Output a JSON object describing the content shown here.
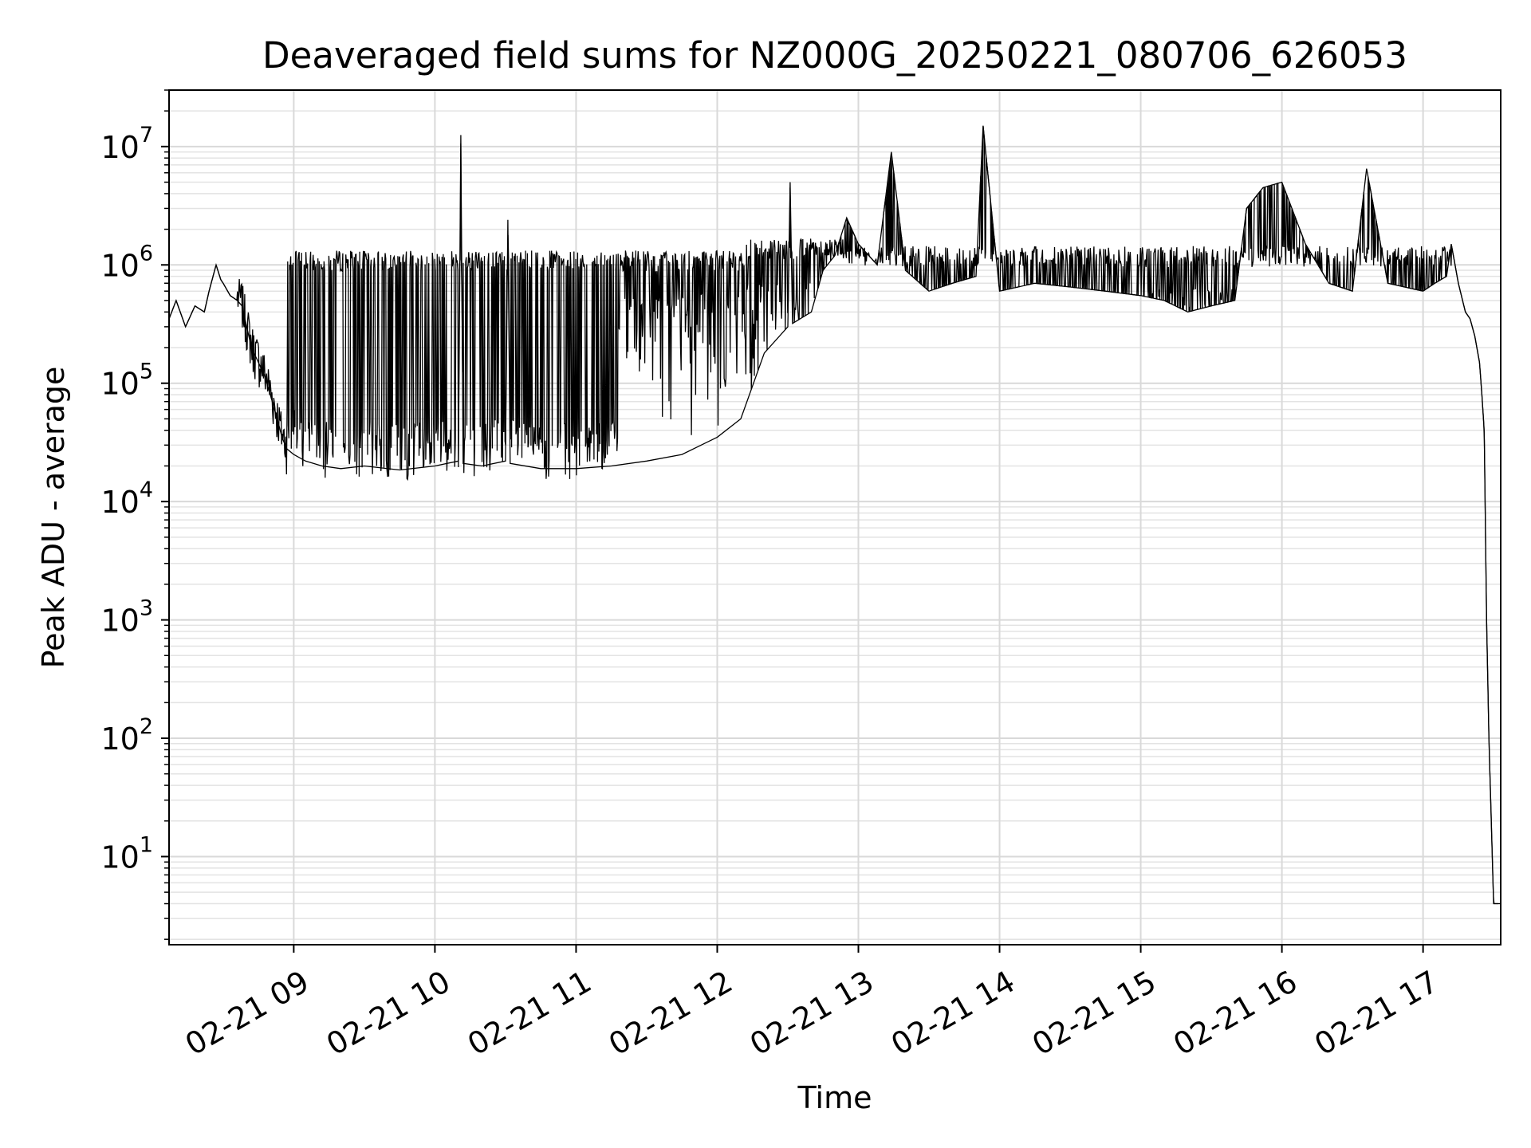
{
  "chart_data": {
    "type": "line",
    "title": "Deaveraged field sums for NZ000G_20250221_080706_626053",
    "xlabel": "Time",
    "ylabel": "Peak ADU - average",
    "yscale": "log",
    "grid": true,
    "xlim": [
      "2025-02-21 08:07",
      "2025-02-21 17:33"
    ],
    "ylim": [
      1.8,
      30000000
    ],
    "x_ticks": [
      {
        "value": "2025-02-21 09:00",
        "label": "02-21 09"
      },
      {
        "value": "2025-02-21 10:00",
        "label": "02-21 10"
      },
      {
        "value": "2025-02-21 11:00",
        "label": "02-21 11"
      },
      {
        "value": "2025-02-21 12:00",
        "label": "02-21 12"
      },
      {
        "value": "2025-02-21 13:00",
        "label": "02-21 13"
      },
      {
        "value": "2025-02-21 14:00",
        "label": "02-21 14"
      },
      {
        "value": "2025-02-21 15:00",
        "label": "02-21 15"
      },
      {
        "value": "2025-02-21 16:00",
        "label": "02-21 16"
      },
      {
        "value": "2025-02-21 17:00",
        "label": "02-21 17"
      }
    ],
    "y_ticks": [
      {
        "value": 10,
        "base": "10",
        "exp": "1"
      },
      {
        "value": 100,
        "base": "10",
        "exp": "2"
      },
      {
        "value": 1000,
        "base": "10",
        "exp": "3"
      },
      {
        "value": 10000,
        "base": "10",
        "exp": "4"
      },
      {
        "value": 100000,
        "base": "10",
        "exp": "5"
      },
      {
        "value": 1000000,
        "base": "10",
        "exp": "6"
      },
      {
        "value": 10000000,
        "base": "10",
        "exp": "7"
      }
    ],
    "series": [
      {
        "color": "#000000",
        "x": [
          "2025-02-21 08:07",
          "2025-02-21 08:10",
          "2025-02-21 08:14",
          "2025-02-21 08:18",
          "2025-02-21 08:22",
          "2025-02-21 08:24",
          "2025-02-21 08:27",
          "2025-02-21 08:29",
          "2025-02-21 08:30",
          "2025-02-21 08:33",
          "2025-02-21 08:36",
          "2025-02-21 08:38",
          "2025-02-21 08:40",
          "2025-02-21 08:42",
          "2025-02-21 08:45",
          "2025-02-21 08:48",
          "2025-02-21 08:50",
          "2025-02-21 08:53",
          "2025-02-21 08:55",
          "2025-02-21 08:57",
          "2025-02-21 09:00",
          "2025-02-21 09:05",
          "2025-02-21 09:12",
          "2025-02-21 09:20",
          "2025-02-21 09:30",
          "2025-02-21 09:45",
          "2025-02-21 10:00",
          "2025-02-21 10:10",
          "2025-02-21 10:11",
          "2025-02-21 10:12",
          "2025-02-21 10:20",
          "2025-02-21 10:30",
          "2025-02-21 10:31",
          "2025-02-21 10:32",
          "2025-02-21 10:45",
          "2025-02-21 11:00",
          "2025-02-21 11:15",
          "2025-02-21 11:30",
          "2025-02-21 11:45",
          "2025-02-21 12:00",
          "2025-02-21 12:10",
          "2025-02-21 12:20",
          "2025-02-21 12:30",
          "2025-02-21 12:31",
          "2025-02-21 12:32",
          "2025-02-21 12:40",
          "2025-02-21 12:45",
          "2025-02-21 12:50",
          "2025-02-21 12:55",
          "2025-02-21 13:00",
          "2025-02-21 13:08",
          "2025-02-21 13:14",
          "2025-02-21 13:20",
          "2025-02-21 13:30",
          "2025-02-21 13:40",
          "2025-02-21 13:50",
          "2025-02-21 13:53",
          "2025-02-21 14:00",
          "2025-02-21 14:15",
          "2025-02-21 14:30",
          "2025-02-21 14:45",
          "2025-02-21 15:00",
          "2025-02-21 15:10",
          "2025-02-21 15:20",
          "2025-02-21 15:30",
          "2025-02-21 15:40",
          "2025-02-21 15:45",
          "2025-02-21 15:52",
          "2025-02-21 16:00",
          "2025-02-21 16:10",
          "2025-02-21 16:20",
          "2025-02-21 16:30",
          "2025-02-21 16:36",
          "2025-02-21 16:45",
          "2025-02-21 17:00",
          "2025-02-21 17:05",
          "2025-02-21 17:10",
          "2025-02-21 17:12",
          "2025-02-21 17:15",
          "2025-02-21 17:18",
          "2025-02-21 17:20",
          "2025-02-21 17:22",
          "2025-02-21 17:24",
          "2025-02-21 17:25",
          "2025-02-21 17:26",
          "2025-02-21 17:27",
          "2025-02-21 17:28",
          "2025-02-21 17:30",
          "2025-02-21 17:32"
        ],
        "y": [
          350000,
          500000,
          300000,
          450000,
          400000,
          600000,
          1000000,
          750000,
          700000,
          550000,
          500000,
          450000,
          300000,
          200000,
          150000,
          110000,
          80000,
          50000,
          35000,
          28000,
          25000,
          22000,
          20000,
          19000,
          20000,
          18500,
          20000,
          22000,
          12500000,
          21000,
          20000,
          22000,
          2400000,
          21000,
          19000,
          19000,
          20000,
          22000,
          25000,
          35000,
          50000,
          180000,
          300000,
          5000000,
          320000,
          400000,
          900000,
          1200000,
          2500000,
          1500000,
          1000000,
          9000000,
          900000,
          600000,
          700000,
          800000,
          15000000,
          600000,
          700000,
          650000,
          600000,
          550000,
          500000,
          400000,
          450000,
          500000,
          3000000,
          4500000,
          5000000,
          1500000,
          700000,
          600000,
          6500000,
          700000,
          600000,
          700000,
          800000,
          1500000,
          700000,
          400000,
          350000,
          250000,
          150000,
          80000,
          40000,
          1000,
          100,
          4,
          4
        ]
      }
    ]
  }
}
